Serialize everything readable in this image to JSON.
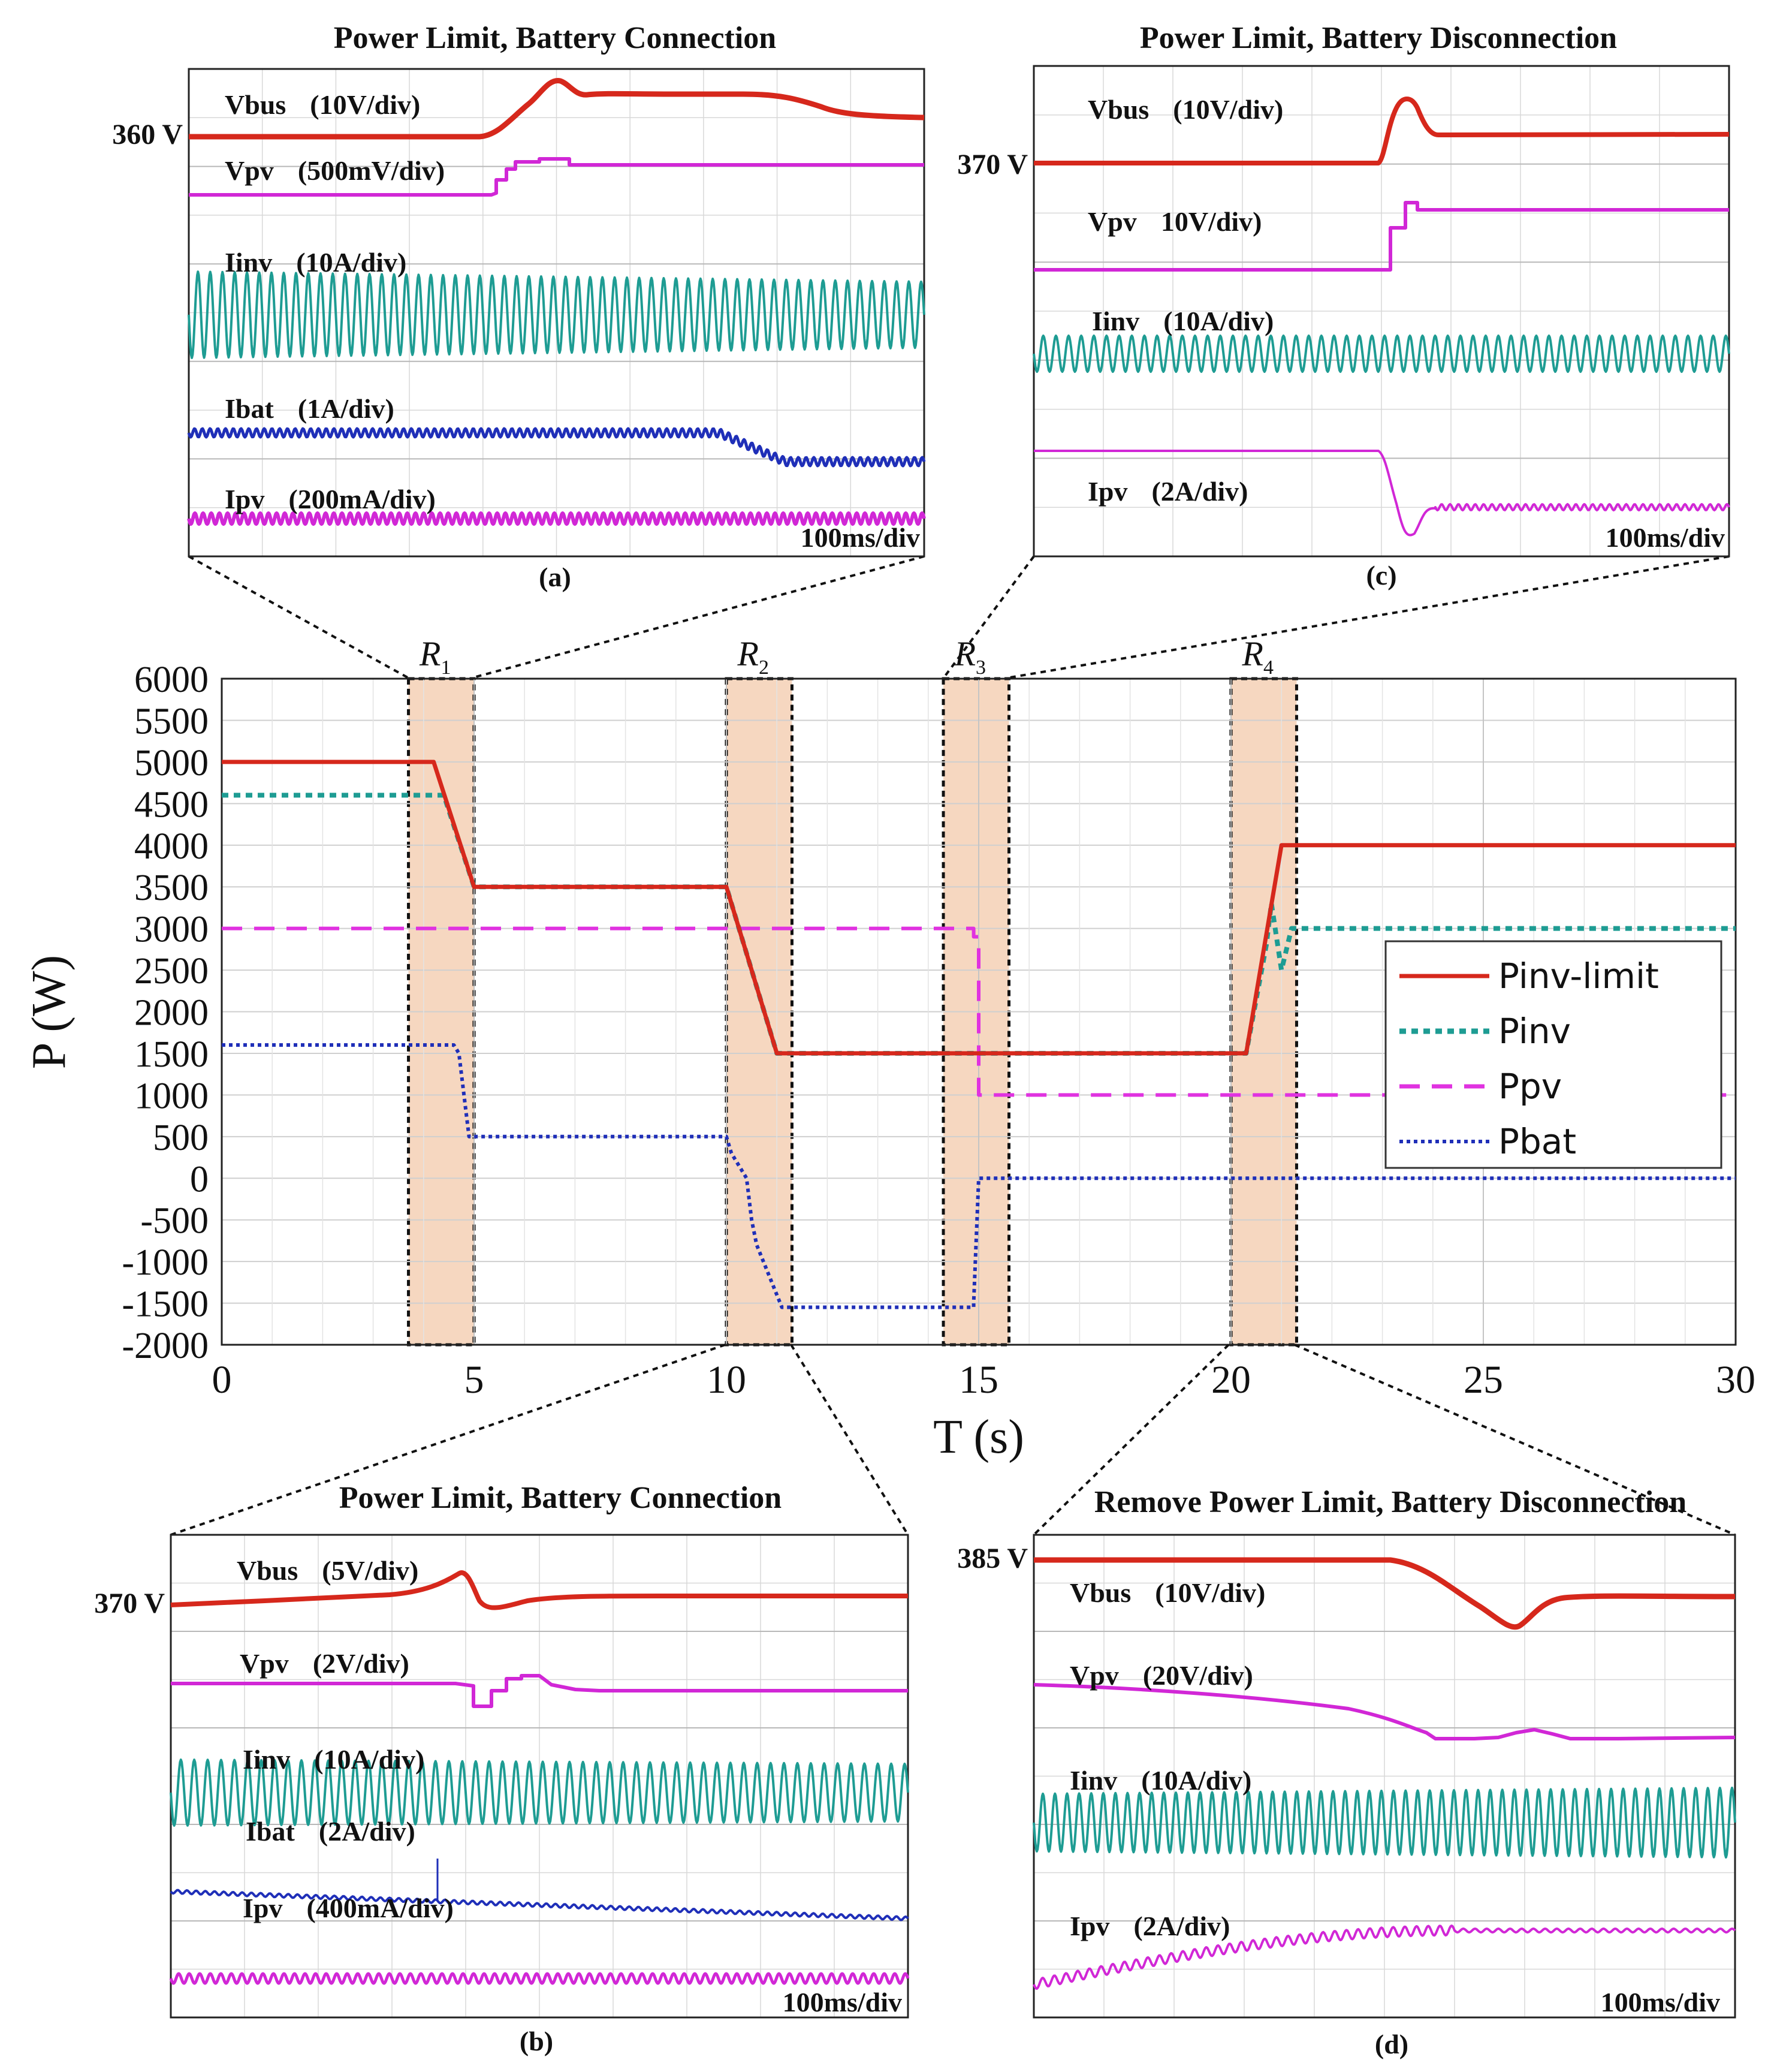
{
  "chart_data": [
    {
      "type": "line",
      "title": "",
      "xlabel": "T (s)",
      "ylabel": "P (W)",
      "xlim": [
        0,
        30
      ],
      "ylim": [
        -2000,
        6000
      ],
      "xticks": [
        0,
        5,
        10,
        15,
        20,
        25,
        30
      ],
      "yticks": [
        6000,
        5500,
        5000,
        4500,
        4000,
        3500,
        3000,
        2500,
        2000,
        1500,
        1000,
        500,
        0,
        -500,
        -1000,
        -1500,
        -2000
      ],
      "grid": true,
      "legend_position": "right",
      "regions": [
        {
          "label": "R",
          "sub": "1",
          "x": [
            3.7,
            5.0
          ]
        },
        {
          "label": "R",
          "sub": "2",
          "x": [
            10.0,
            11.3
          ]
        },
        {
          "label": "R",
          "sub": "3",
          "x": [
            14.3,
            15.6
          ]
        },
        {
          "label": "R",
          "sub": "4",
          "x": [
            20.0,
            21.3
          ]
        }
      ],
      "series": [
        {
          "name": "Pinv-limit",
          "color": "#d6281c",
          "style": "solid",
          "x": [
            0,
            4.0,
            4.2,
            5.0,
            10.0,
            11.0,
            20.0,
            20.3,
            21.0,
            30
          ],
          "y": [
            5000,
            5000,
            5000,
            3500,
            3500,
            1500,
            1500,
            1500,
            4000,
            4000
          ]
        },
        {
          "name": "Pinv",
          "color": "#1e9c93",
          "style": "dotted",
          "x": [
            0,
            4.4,
            5.0,
            10.0,
            11.0,
            20.0,
            20.3,
            20.7,
            20.8,
            20.9,
            21.0,
            21.2,
            30
          ],
          "y": [
            4600,
            4600,
            3500,
            3500,
            1500,
            1500,
            1500,
            2800,
            3300,
            2900,
            2500,
            3000,
            3000
          ]
        },
        {
          "name": "Ppv",
          "color": "#e032e0",
          "style": "dashed",
          "x": [
            0,
            14.9,
            14.9,
            15.0,
            15.0,
            30
          ],
          "y": [
            3000,
            3000,
            2900,
            2900,
            1000,
            1000
          ]
        },
        {
          "name": "Pbat",
          "color": "#1f2fb8",
          "style": "dotted",
          "x": [
            0,
            4.6,
            4.7,
            4.9,
            10.0,
            10.1,
            10.4,
            10.5,
            10.6,
            11.1,
            14.9,
            14.9,
            15.0,
            30
          ],
          "y": [
            1600,
            1600,
            1500,
            500,
            500,
            300,
            0,
            -500,
            -800,
            -1550,
            -1550,
            -1500,
            0,
            0
          ]
        }
      ]
    },
    {
      "type": "line",
      "panel": "(a)",
      "title": "Power Limit, Battery Connection",
      "reference_label": "360 V",
      "time_scale": "100ms/div",
      "series": [
        {
          "name": "Vbus",
          "scale": "(10V/div)"
        },
        {
          "name": "Vpv",
          "scale": "(500mV/div)"
        },
        {
          "name": "Iinv",
          "scale": "(10A/div)"
        },
        {
          "name": "Ibat",
          "scale": "(1A/div)"
        },
        {
          "name": "Ipv",
          "scale": "(200mA/div)"
        }
      ]
    },
    {
      "type": "line",
      "panel": "(b)",
      "title": "Power Limit, Battery Connection",
      "reference_label": "370 V",
      "time_scale": "100ms/div",
      "series": [
        {
          "name": "Vbus",
          "scale": "(5V/div)"
        },
        {
          "name": "Vpv",
          "scale": "(2V/div)"
        },
        {
          "name": "Iinv",
          "scale": "(10A/div)"
        },
        {
          "name": "Ibat",
          "scale": "(2A/div)"
        },
        {
          "name": "Ipv",
          "scale": "(400mA/div)"
        }
      ]
    },
    {
      "type": "line",
      "panel": "(c)",
      "title": "Power Limit, Battery Disconnection",
      "reference_label": "370 V",
      "time_scale": "100ms/div",
      "series": [
        {
          "name": "Vbus",
          "scale": "(10V/div)"
        },
        {
          "name": "Vpv",
          "scale": "10V/div)"
        },
        {
          "name": "Iinv",
          "scale": "(10A/div)"
        },
        {
          "name": "Ipv",
          "scale": "(2A/div)"
        }
      ]
    },
    {
      "type": "line",
      "panel": "(d)",
      "title": "Remove Power Limit, Battery Disconnection",
      "reference_label": "385 V",
      "time_scale": "100ms/div",
      "series": [
        {
          "name": "Vbus",
          "scale": "(10V/div)"
        },
        {
          "name": "Vpv",
          "scale": "(20V/div)"
        },
        {
          "name": "Iinv",
          "scale": "(10A/div)"
        },
        {
          "name": "Ipv",
          "scale": "(2A/div)"
        }
      ]
    }
  ]
}
